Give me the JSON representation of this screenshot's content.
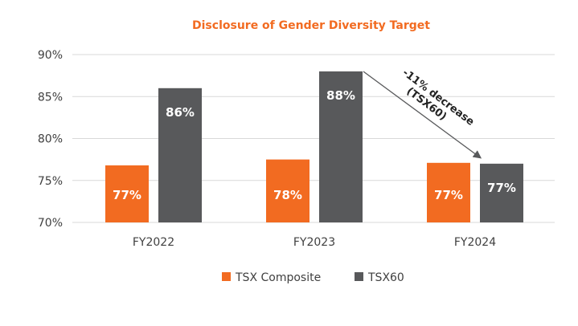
{
  "chart_data": {
    "type": "bar",
    "title": "Disclosure of Gender Diversity Target",
    "categories": [
      "FY2022",
      "FY2023",
      "FY2024"
    ],
    "series": [
      {
        "name": "TSX Composite",
        "values": [
          76.8,
          77.5,
          77.1
        ],
        "labels": [
          "77%",
          "78%",
          "77%"
        ],
        "color": "#f26b21"
      },
      {
        "name": "TSX60",
        "values": [
          86,
          88,
          77
        ],
        "labels": [
          "86%",
          "88%",
          "77%"
        ],
        "color": "#58595b"
      }
    ],
    "ylim": [
      70,
      90
    ],
    "yticks": [
      70,
      75,
      80,
      85,
      90
    ],
    "ytick_labels": [
      "70%",
      "75%",
      "80%",
      "85%",
      "90%"
    ],
    "grid": true,
    "legend": "bottom",
    "annotation": {
      "lines": [
        "-11% decrease",
        "(TSX60)"
      ],
      "from": "FY2023 TSX60",
      "to": "FY2024 TSX60"
    },
    "title_color": "#f26b21"
  }
}
